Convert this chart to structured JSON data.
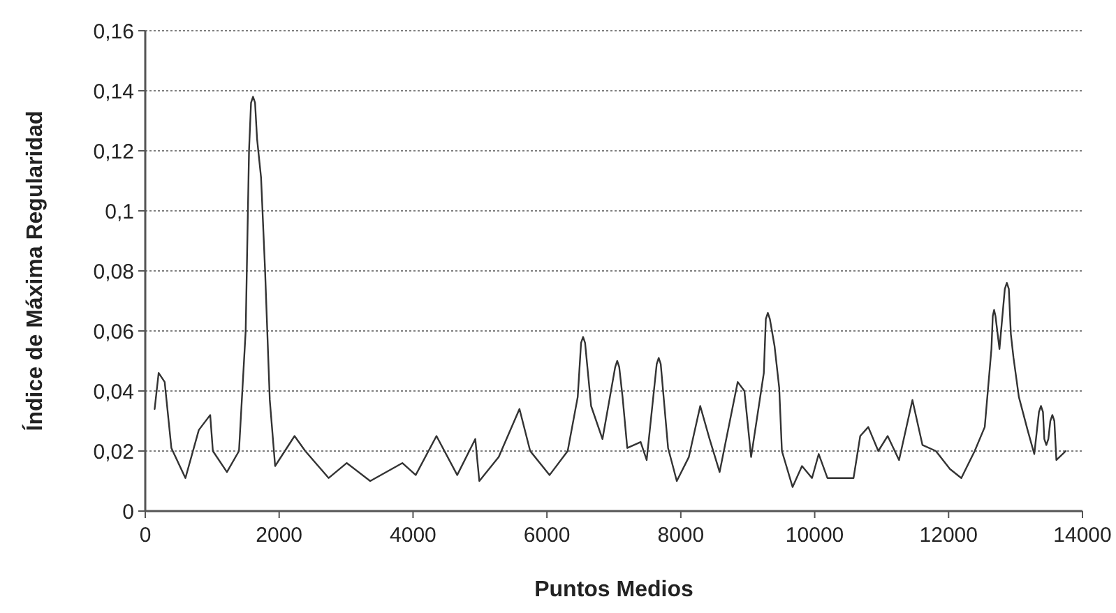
{
  "chart_data": {
    "type": "line",
    "xlabel": "Puntos Medios",
    "ylabel": "Índice de Máxima Regularidad",
    "xlim": [
      0,
      14000
    ],
    "xticks": [
      0,
      2000,
      4000,
      6000,
      8000,
      10000,
      12000,
      14000
    ],
    "ylim": [
      0,
      0.16
    ],
    "yticks": [
      {
        "value": 0,
        "label": "0"
      },
      {
        "value": 0.02,
        "label": "0,02"
      },
      {
        "value": 0.04,
        "label": "0,04"
      },
      {
        "value": 0.06,
        "label": "0,06"
      },
      {
        "value": 0.08,
        "label": "0,08"
      },
      {
        "value": 0.1,
        "label": "0,1"
      },
      {
        "value": 0.12,
        "label": "0,12"
      },
      {
        "value": 0.14,
        "label": "0,14"
      },
      {
        "value": 0.16,
        "label": "0,16"
      }
    ],
    "grid": "y",
    "marker": "none",
    "line_style": "solid",
    "series": [
      {
        "color": "#333333",
        "x": [
          140,
          200,
          290,
          390,
          600,
          800,
          970,
          1010,
          1220,
          1400,
          1500,
          1550,
          1580,
          1610,
          1640,
          1670,
          1730,
          1790,
          1860,
          1940,
          2230,
          2390,
          2740,
          3010,
          3360,
          3840,
          4040,
          4350,
          4660,
          4930,
          4990,
          5280,
          5590,
          5750,
          6040,
          6310,
          6460,
          6510,
          6540,
          6570,
          6660,
          6830,
          7020,
          7050,
          7080,
          7130,
          7200,
          7400,
          7490,
          7640,
          7670,
          7700,
          7810,
          7940,
          8120,
          8290,
          8430,
          8580,
          8850,
          8950,
          9050,
          9240,
          9270,
          9300,
          9330,
          9400,
          9470,
          9510,
          9670,
          9810,
          9960,
          10060,
          10190,
          10580,
          10680,
          10800,
          10950,
          11090,
          11260,
          11460,
          11610,
          11810,
          12020,
          12190,
          12390,
          12540,
          12640,
          12660,
          12680,
          12700,
          12760,
          12840,
          12870,
          12900,
          12930,
          12970,
          13050,
          13180,
          13280,
          13350,
          13380,
          13410,
          13430,
          13460,
          13490,
          13520,
          13550,
          13580,
          13610,
          13750
        ],
        "values": [
          0.034,
          0.046,
          0.043,
          0.021,
          0.011,
          0.027,
          0.032,
          0.02,
          0.013,
          0.02,
          0.06,
          0.12,
          0.136,
          0.138,
          0.136,
          0.124,
          0.111,
          0.08,
          0.037,
          0.015,
          0.025,
          0.02,
          0.011,
          0.016,
          0.01,
          0.016,
          0.012,
          0.025,
          0.012,
          0.024,
          0.01,
          0.018,
          0.034,
          0.02,
          0.012,
          0.02,
          0.038,
          0.056,
          0.058,
          0.056,
          0.035,
          0.024,
          0.048,
          0.05,
          0.048,
          0.038,
          0.021,
          0.023,
          0.017,
          0.049,
          0.051,
          0.049,
          0.021,
          0.01,
          0.018,
          0.035,
          0.024,
          0.013,
          0.043,
          0.04,
          0.018,
          0.046,
          0.064,
          0.066,
          0.064,
          0.055,
          0.041,
          0.02,
          0.008,
          0.015,
          0.011,
          0.019,
          0.011,
          0.011,
          0.025,
          0.028,
          0.02,
          0.025,
          0.017,
          0.037,
          0.022,
          0.02,
          0.014,
          0.011,
          0.02,
          0.028,
          0.054,
          0.065,
          0.067,
          0.065,
          0.054,
          0.074,
          0.076,
          0.074,
          0.059,
          0.051,
          0.038,
          0.027,
          0.019,
          0.033,
          0.035,
          0.033,
          0.024,
          0.022,
          0.024,
          0.03,
          0.032,
          0.03,
          0.017,
          0.02
        ]
      }
    ]
  }
}
